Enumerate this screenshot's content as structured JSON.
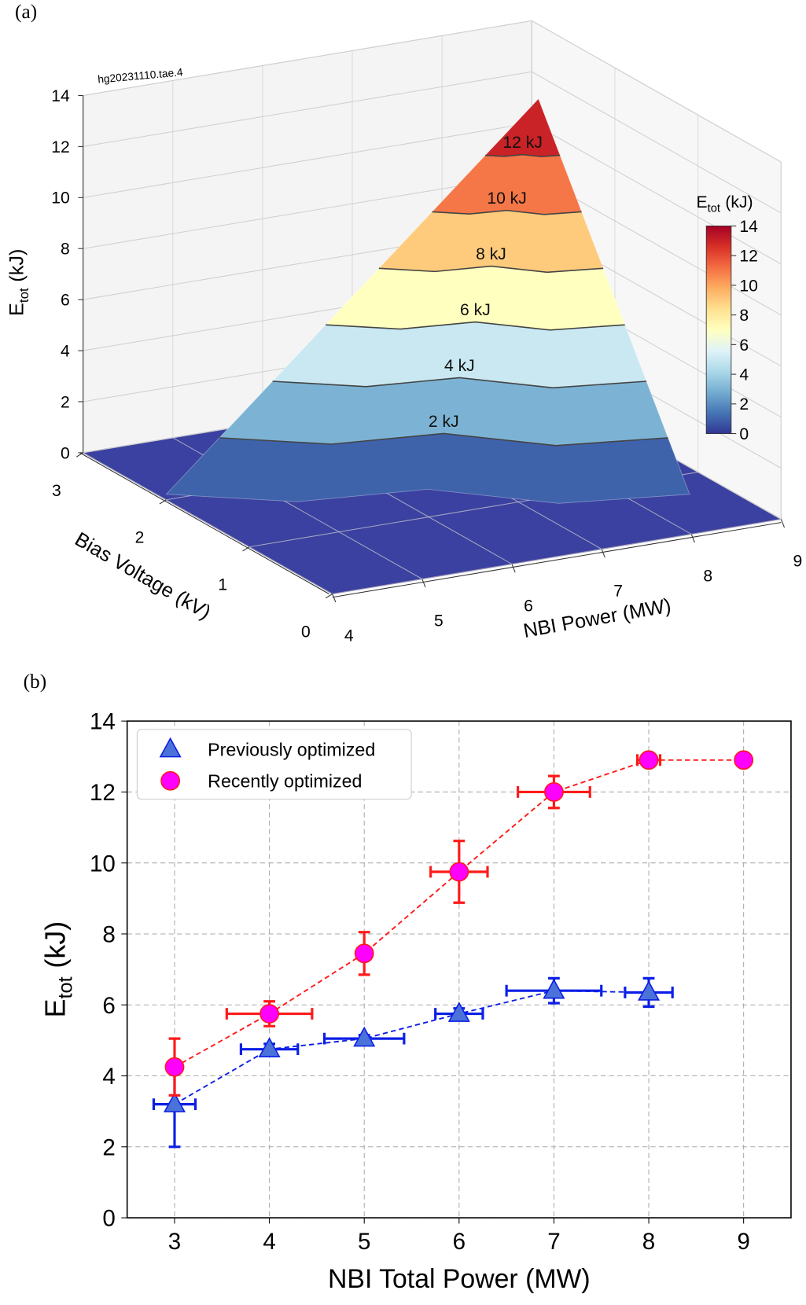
{
  "chart_data": [
    {
      "type": "surface3d",
      "panel_label": "(a)",
      "run_label": "hg20231110.tae.4",
      "xlabel": "NBI Power (MW)",
      "ylabel": "Bias Voltage (kV)",
      "zlabel": {
        "main": "E",
        "sub": "tot",
        "unit": "(kJ)"
      },
      "xlim": [
        4,
        9
      ],
      "xticks": [
        4,
        5,
        6,
        7,
        8,
        9
      ],
      "ylim": [
        0,
        3
      ],
      "yticks": [
        0,
        1,
        2,
        3
      ],
      "zlim": [
        0,
        14
      ],
      "zticks": [
        0,
        2,
        4,
        6,
        8,
        10,
        12,
        14
      ],
      "contours": [
        {
          "level": 2,
          "label": "2 kJ"
        },
        {
          "level": 4,
          "label": "4 kJ"
        },
        {
          "level": 6,
          "label": "6 kJ"
        },
        {
          "level": 8,
          "label": "8 kJ"
        },
        {
          "level": 10,
          "label": "10 kJ"
        },
        {
          "level": 12,
          "label": "12 kJ"
        }
      ],
      "colorbar": {
        "title": {
          "main": "E",
          "sub": "tot",
          "unit": "(kJ)"
        },
        "lim": [
          0,
          14
        ],
        "ticks": [
          0,
          2,
          4,
          6,
          8,
          10,
          12,
          14
        ],
        "colormap": "RdYlBu_r"
      }
    },
    {
      "type": "errorbar",
      "panel_label": "(b)",
      "xlabel": "NBI Total Power (MW)",
      "ylabel": {
        "main": "E",
        "sub": "tot",
        "unit": "(kJ)"
      },
      "xlim": [
        2.5,
        9.5
      ],
      "xticks": [
        3,
        4,
        5,
        6,
        7,
        8,
        9
      ],
      "ylim": [
        0,
        14
      ],
      "yticks": [
        0,
        2,
        4,
        6,
        8,
        10,
        12,
        14
      ],
      "grid": true,
      "legend": "upper left",
      "series": [
        {
          "name": "Previously optimized",
          "color": "#0b1fe6",
          "marker": "triangle",
          "marker_color": "#4a72d8",
          "x": [
            3,
            4,
            5,
            6,
            7,
            8
          ],
          "values": [
            3.2,
            4.75,
            5.05,
            5.75,
            6.4,
            6.35
          ],
          "yerr": [
            1.2,
            0.15,
            0.1,
            0.15,
            0.35,
            0.4
          ],
          "xerr": [
            0.22,
            0.3,
            0.42,
            0.25,
            0.5,
            0.25
          ]
        },
        {
          "name": "Recently optimized",
          "color": "#ff1a1a",
          "marker": "circle",
          "marker_color": "#ff00ff",
          "x": [
            3,
            4,
            5,
            6,
            7,
            8,
            9
          ],
          "values": [
            4.25,
            5.75,
            7.45,
            9.75,
            12.0,
            12.9,
            12.9
          ],
          "yerr": [
            0.8,
            0.35,
            0.6,
            0.87,
            0.45,
            0.1,
            0
          ],
          "xerr": [
            0,
            0.45,
            0.05,
            0.3,
            0.38,
            0.12,
            0
          ]
        }
      ]
    }
  ]
}
